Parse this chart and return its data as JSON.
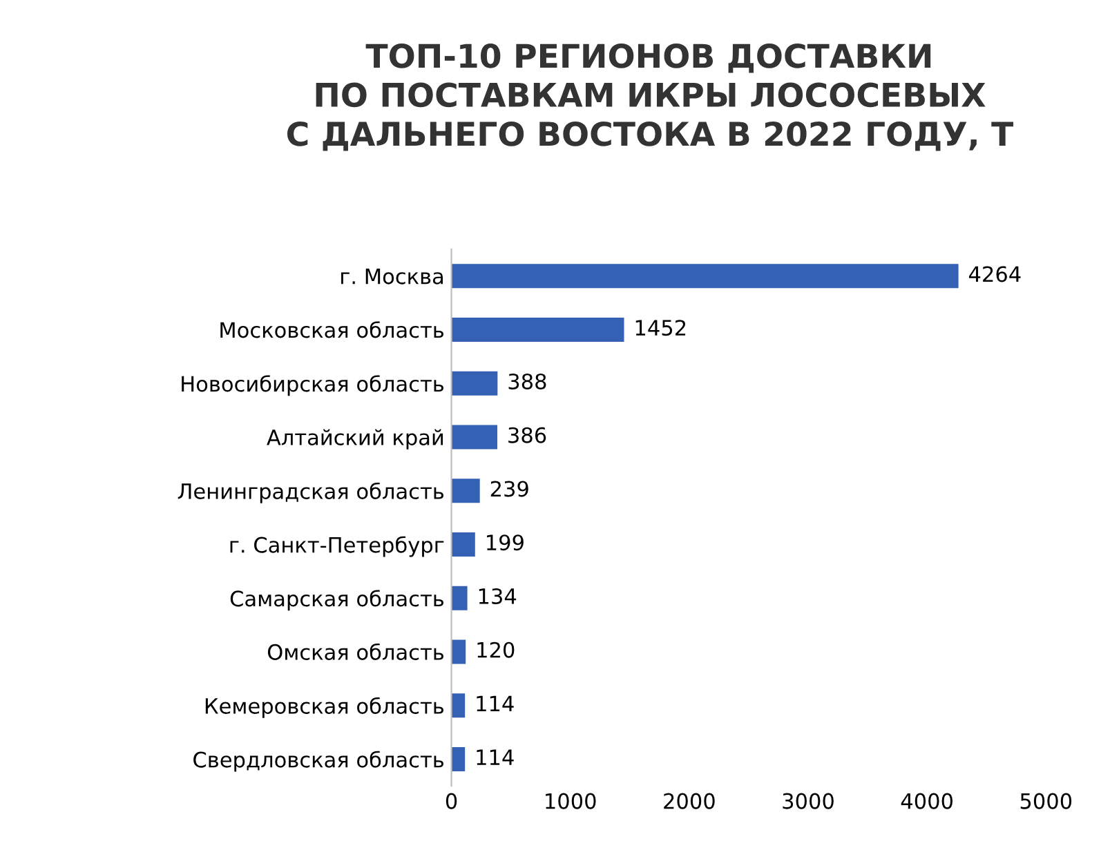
{
  "chart_data": {
    "type": "bar",
    "orientation": "horizontal",
    "title": "ТОП-10 РЕГИОНОВ ДОСТАВКИ\nПО ПОСТАВКАМ ИКРЫ ЛОСОСЕВЫХ\nС ДАЛЬНЕГО ВОСТОКА В 2022 ГОДУ, Т",
    "categories": [
      "г. Москва",
      "Московская область",
      "Новосибирская область",
      "Алтайский край",
      "Ленинградская область",
      "г. Санкт-Петербург",
      "Самарская область",
      "Омская область",
      "Кемеровская область",
      "Свердловская область"
    ],
    "values": [
      4264,
      1452,
      388,
      386,
      239,
      199,
      134,
      120,
      114,
      114
    ],
    "color": "#3461b3",
    "xlim": [
      0,
      5000
    ],
    "xticks": [
      0,
      1000,
      2000,
      3000,
      4000,
      5000
    ],
    "data_labels": true,
    "grid": false,
    "legend": false
  }
}
